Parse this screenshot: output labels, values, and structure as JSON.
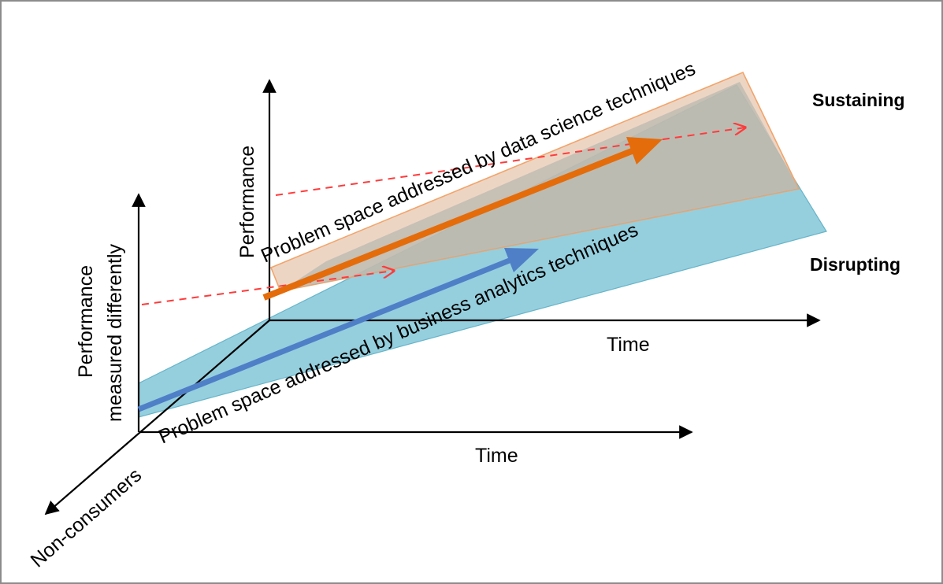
{
  "labels": {
    "performance": "Performance",
    "performance_measured_line1": "Performance",
    "performance_measured_line2": "measured differently",
    "time_upper": "Time",
    "time_lower": "Time",
    "non_consumers": "Non-consumers",
    "data_science": "Problem space addressed by data science techniques",
    "business_analytics": "Problem space addressed by business analytics techniques",
    "sustaining": "Sustaining",
    "disrupting": "Disrupting"
  },
  "colors": {
    "blue_region": "#8fccdc",
    "orange_region": "#e8c9b4",
    "orange_region_border": "#f2a46a",
    "orange_arrow": "#e46c0a",
    "blue_arrow": "#4f7fc7",
    "dashed_trajectory": "#ff3b3b",
    "axis": "#000000"
  },
  "icons": {
    "arrowhead": "arrowhead-icon"
  }
}
